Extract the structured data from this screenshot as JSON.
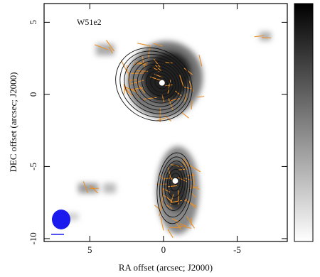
{
  "chart_data": {
    "type": "scatter",
    "title": "W51e2",
    "x_label": "RA offset (arcsec; J2000)",
    "y_label": "DEC offset (arcsec; J2000)",
    "x": [
      0.1,
      -0.8
    ],
    "values": [
      0.8,
      -6
    ],
    "xlim": [
      8.1,
      -8.4
    ],
    "ylim": [
      -10.2,
      6.3
    ],
    "xticks": [
      5,
      0,
      -5
    ],
    "yticks": [
      5,
      0,
      -5,
      -10
    ],
    "color": "#ffffff",
    "title_color": "#33dd33",
    "vector_color": "#e8902a",
    "beam_color": "#1a1aee"
  }
}
